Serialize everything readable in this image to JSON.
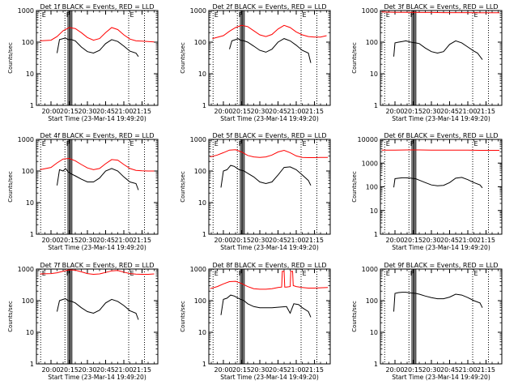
{
  "figure": {
    "x_tick_labels": [
      "20:00",
      "20:15",
      "20:30",
      "20:45",
      "21:00",
      "21:15"
    ],
    "x_tick_minutes": [
      0,
      15,
      30,
      45,
      60,
      75
    ],
    "xlim_minutes": [
      -12,
      88
    ],
    "xlabel": "Start Time (23-Mar-14 19:49:20)",
    "ylabel": "Counts/sec",
    "event_lines": [
      {
        "minute": -8.5,
        "label": "E"
      },
      {
        "minute": 11.5,
        "label": "F"
      },
      {
        "minute": 64,
        "label": "E"
      },
      {
        "minute": 77,
        "label": ""
      }
    ],
    "gaps_minutes": [
      [
        14,
        15.2
      ],
      [
        16,
        17.2
      ]
    ],
    "colors": {
      "events": "#000000",
      "lld": "#ff0000",
      "axis": "#000000",
      "background": "#ffffff"
    }
  },
  "chart_data": [
    {
      "type": "line",
      "title": "Det 1f BLACK = Events, RED = LLD",
      "ylim": [
        1,
        1000
      ],
      "y_log": true,
      "y_tick_labels": [
        "1",
        "10",
        "100",
        "1000"
      ],
      "series": [
        {
          "name": "Events",
          "color": "#000000",
          "x": [
            5,
            7,
            10,
            12,
            14,
            17,
            20,
            25,
            30,
            35,
            40,
            45,
            50,
            55,
            60,
            65,
            70,
            72
          ],
          "values": [
            45,
            120,
            130,
            135,
            120,
            120,
            110,
            70,
            50,
            45,
            55,
            90,
            120,
            105,
            75,
            52,
            45,
            35
          ]
        },
        {
          "name": "LLD",
          "color": "#ff0000",
          "x": [
            -9,
            0,
            5,
            10,
            15,
            20,
            25,
            30,
            35,
            40,
            45,
            50,
            55,
            60,
            65,
            70,
            75,
            80,
            85
          ],
          "values": [
            110,
            115,
            150,
            230,
            290,
            270,
            200,
            140,
            115,
            130,
            200,
            290,
            250,
            170,
            125,
            110,
            108,
            105,
            102
          ]
        }
      ]
    },
    {
      "type": "line",
      "title": "Det 2f BLACK = Events, RED = LLD",
      "ylim": [
        1,
        1000
      ],
      "y_log": true,
      "y_tick_labels": [
        "1",
        "10",
        "100",
        "1000"
      ],
      "series": [
        {
          "name": "Events",
          "color": "#000000",
          "x": [
            5,
            7,
            10,
            12,
            14,
            17,
            20,
            25,
            30,
            35,
            40,
            45,
            50,
            55,
            60,
            65,
            70,
            72
          ],
          "values": [
            60,
            110,
            120,
            130,
            115,
            110,
            100,
            75,
            55,
            48,
            60,
            100,
            130,
            110,
            80,
            55,
            45,
            22
          ]
        },
        {
          "name": "LLD",
          "color": "#ff0000",
          "x": [
            -9,
            0,
            5,
            10,
            15,
            20,
            25,
            30,
            35,
            40,
            45,
            50,
            55,
            60,
            65,
            70,
            75,
            80,
            85
          ],
          "values": [
            130,
            160,
            220,
            290,
            340,
            310,
            230,
            170,
            150,
            175,
            260,
            340,
            290,
            210,
            170,
            150,
            145,
            145,
            160
          ]
        }
      ]
    },
    {
      "type": "line",
      "title": "Det 3f BLACK = Events, RED = LLD",
      "ylim": [
        1,
        1000
      ],
      "y_log": true,
      "y_tick_labels": [
        "1",
        "10",
        "100",
        "1000"
      ],
      "series": [
        {
          "name": "Events",
          "color": "#000000",
          "x": [
            -1,
            0,
            3,
            6,
            9,
            13,
            17,
            20,
            25,
            30,
            35,
            40,
            45,
            50,
            55,
            60,
            65,
            68,
            72
          ],
          "values": [
            35,
            95,
            100,
            105,
            110,
            100,
            95,
            90,
            65,
            50,
            45,
            50,
            85,
            110,
            95,
            70,
            52,
            45,
            28
          ]
        },
        {
          "name": "LLD",
          "color": "#ff0000",
          "x": [
            -11,
            0,
            10,
            20,
            30,
            40,
            50,
            60,
            70,
            80,
            86
          ],
          "values": [
            900,
            880,
            880,
            870,
            870,
            860,
            860,
            860,
            850,
            850,
            850
          ]
        }
      ]
    },
    {
      "type": "line",
      "title": "Det 4f BLACK = Events, RED = LLD",
      "ylim": [
        1,
        1000
      ],
      "y_log": true,
      "y_tick_labels": [
        "1",
        "10",
        "100",
        "1000"
      ],
      "series": [
        {
          "name": "Events",
          "color": "#000000",
          "x": [
            5,
            7,
            10,
            12,
            14,
            17,
            20,
            25,
            30,
            35,
            40,
            45,
            50,
            55,
            60,
            65,
            70,
            72
          ],
          "values": [
            35,
            110,
            100,
            120,
            95,
            80,
            70,
            55,
            45,
            45,
            60,
            100,
            120,
            100,
            65,
            45,
            40,
            25
          ]
        },
        {
          "name": "LLD",
          "color": "#ff0000",
          "x": [
            -9,
            0,
            5,
            10,
            15,
            20,
            25,
            30,
            35,
            40,
            45,
            50,
            55,
            60,
            65,
            70,
            75,
            80,
            85
          ],
          "values": [
            110,
            130,
            180,
            240,
            250,
            210,
            160,
            125,
            110,
            120,
            170,
            230,
            220,
            160,
            120,
            105,
            102,
            100,
            100
          ]
        }
      ]
    },
    {
      "type": "line",
      "title": "Det 5f BLACK = Events, RED = LLD",
      "ylim": [
        1,
        1000
      ],
      "y_log": true,
      "y_tick_labels": [
        "1",
        "10",
        "100",
        "1000"
      ],
      "series": [
        {
          "name": "Events",
          "color": "#000000",
          "x": [
            -2,
            0,
            3,
            6,
            9,
            13,
            17,
            20,
            25,
            30,
            35,
            40,
            45,
            50,
            55,
            60,
            65,
            70,
            72
          ],
          "values": [
            30,
            100,
            110,
            150,
            140,
            110,
            100,
            85,
            65,
            45,
            40,
            45,
            75,
            130,
            135,
            110,
            75,
            50,
            35
          ]
        },
        {
          "name": "LLD",
          "color": "#ff0000",
          "x": [
            -11,
            -5,
            0,
            5,
            10,
            15,
            20,
            25,
            30,
            35,
            40,
            45,
            50,
            55,
            60,
            65,
            70,
            75,
            80,
            86
          ],
          "values": [
            280,
            320,
            380,
            460,
            470,
            400,
            310,
            280,
            270,
            280,
            320,
            400,
            450,
            380,
            300,
            270,
            265,
            265,
            270,
            270
          ]
        }
      ]
    },
    {
      "type": "line",
      "title": "Det 6f BLACK = Events, RED = LLD",
      "ylim": [
        1,
        10000
      ],
      "y_log": true,
      "y_tick_labels": [
        "1",
        "10",
        "100",
        "1000",
        "10000"
      ],
      "series": [
        {
          "name": "Events",
          "color": "#000000",
          "x": [
            -1,
            0,
            3,
            6,
            9,
            13,
            17,
            20,
            25,
            30,
            35,
            40,
            45,
            50,
            55,
            60,
            65,
            70,
            72
          ],
          "values": [
            95,
            220,
            230,
            240,
            240,
            230,
            220,
            190,
            150,
            120,
            110,
            115,
            150,
            230,
            250,
            200,
            150,
            120,
            90
          ]
        },
        {
          "name": "LLD",
          "color": "#ff0000",
          "x": [
            -11,
            0,
            10,
            20,
            30,
            40,
            50,
            60,
            70,
            80,
            86
          ],
          "values": [
            3500,
            3550,
            3600,
            3600,
            3550,
            3550,
            3500,
            3500,
            3450,
            3450,
            3450
          ]
        }
      ]
    },
    {
      "type": "line",
      "title": "Det 7f BLACK = Events, RED = LLD",
      "ylim": [
        1,
        1000
      ],
      "y_log": true,
      "y_tick_labels": [
        "1",
        "10",
        "100",
        "1000"
      ],
      "series": [
        {
          "name": "Events",
          "color": "#000000",
          "x": [
            5,
            7,
            10,
            12,
            14,
            17,
            20,
            25,
            30,
            35,
            40,
            45,
            50,
            55,
            60,
            65,
            70,
            72
          ],
          "values": [
            45,
            100,
            110,
            115,
            100,
            95,
            85,
            60,
            45,
            40,
            50,
            85,
            110,
            95,
            70,
            48,
            40,
            25
          ]
        },
        {
          "name": "LLD",
          "color": "#ff0000",
          "x": [
            -9,
            0,
            5,
            10,
            15,
            20,
            25,
            30,
            35,
            40,
            45,
            50,
            55,
            60,
            65,
            70,
            75,
            80,
            85
          ],
          "values": [
            700,
            720,
            760,
            860,
            940,
            920,
            820,
            720,
            680,
            700,
            780,
            880,
            900,
            800,
            720,
            690,
            680,
            680,
            700
          ]
        }
      ]
    },
    {
      "type": "line",
      "title": "Det 8f BLACK = Events, RED = LLD",
      "ylim": [
        1,
        1000
      ],
      "y_log": true,
      "y_tick_labels": [
        "1",
        "10",
        "100",
        "1000"
      ],
      "series": [
        {
          "name": "Events",
          "color": "#000000",
          "x": [
            -2,
            0,
            3,
            6,
            9,
            13,
            17,
            20,
            25,
            30,
            35,
            40,
            45,
            52,
            55,
            58,
            62,
            65,
            70,
            72
          ],
          "values": [
            35,
            110,
            120,
            150,
            140,
            115,
            100,
            80,
            65,
            60,
            60,
            60,
            62,
            65,
            40,
            80,
            75,
            60,
            45,
            30
          ]
        },
        {
          "name": "LLD",
          "color": "#ff0000",
          "x": [
            -11,
            -5,
            0,
            5,
            10,
            15,
            20,
            25,
            30,
            35,
            40,
            45,
            48,
            48.5,
            50,
            50.5,
            52,
            55,
            55.5,
            57,
            57.5,
            60,
            65,
            70,
            75,
            80,
            86
          ],
          "values": [
            240,
            280,
            340,
            400,
            410,
            350,
            280,
            240,
            230,
            230,
            240,
            260,
            270,
            850,
            850,
            270,
            270,
            280,
            850,
            850,
            300,
            280,
            260,
            250,
            250,
            255,
            260
          ]
        }
      ]
    },
    {
      "type": "line",
      "title": "Det 9f BLACK = Events, RED = LLD",
      "ylim": [
        1,
        1000
      ],
      "y_log": true,
      "y_tick_labels": [
        "1",
        "10",
        "100",
        "1000"
      ],
      "series": [
        {
          "name": "Events",
          "color": "#000000",
          "x": [
            -1,
            0,
            3,
            6,
            9,
            13,
            17,
            20,
            25,
            30,
            35,
            40,
            45,
            50,
            55,
            60,
            65,
            70,
            72
          ],
          "values": [
            45,
            170,
            180,
            185,
            185,
            175,
            170,
            160,
            140,
            125,
            115,
            115,
            130,
            160,
            150,
            125,
            100,
            85,
            60
          ]
        }
      ]
    }
  ]
}
